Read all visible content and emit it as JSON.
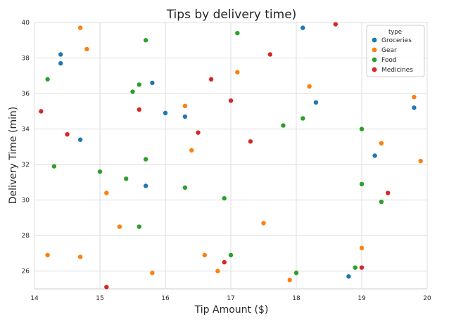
{
  "chart_data": {
    "type": "scatter",
    "title": "Tips by delivery time)",
    "xlabel": "Tip Amount ($)",
    "ylabel": "Delivery Time (min)",
    "xlim": [
      14,
      20
    ],
    "ylim": [
      25,
      40
    ],
    "xticks": [
      14,
      15,
      16,
      17,
      18,
      19,
      20
    ],
    "yticks": [
      26,
      28,
      30,
      32,
      34,
      36,
      38,
      40
    ],
    "grid": true,
    "legend": {
      "title": "type",
      "position": "top-right"
    },
    "series": [
      {
        "name": "Groceries",
        "color": "#1f77b4",
        "points": [
          [
            14.4,
            38.2
          ],
          [
            14.4,
            37.7
          ],
          [
            15.8,
            36.6
          ],
          [
            16.0,
            34.9
          ],
          [
            16.3,
            34.7
          ],
          [
            14.7,
            33.4
          ],
          [
            15.7,
            30.8
          ],
          [
            18.1,
            39.7
          ],
          [
            18.3,
            35.5
          ],
          [
            19.2,
            32.5
          ],
          [
            19.8,
            35.2
          ],
          [
            18.8,
            25.7
          ]
        ]
      },
      {
        "name": "Gear",
        "color": "#ff7f0e",
        "points": [
          [
            14.7,
            39.7
          ],
          [
            14.8,
            38.5
          ],
          [
            17.1,
            37.2
          ],
          [
            18.2,
            36.4
          ],
          [
            16.3,
            35.3
          ],
          [
            16.4,
            32.8
          ],
          [
            15.1,
            30.4
          ],
          [
            15.3,
            28.5
          ],
          [
            14.2,
            26.9
          ],
          [
            14.7,
            26.8
          ],
          [
            15.8,
            25.9
          ],
          [
            16.6,
            26.9
          ],
          [
            16.8,
            26.0
          ],
          [
            17.5,
            28.7
          ],
          [
            17.9,
            25.5
          ],
          [
            19.0,
            27.3
          ],
          [
            19.3,
            33.2
          ],
          [
            19.8,
            35.8
          ],
          [
            19.9,
            32.2
          ]
        ]
      },
      {
        "name": "Food",
        "color": "#2ca02c",
        "points": [
          [
            15.7,
            39.0
          ],
          [
            17.1,
            39.4
          ],
          [
            14.2,
            36.8
          ],
          [
            15.5,
            36.1
          ],
          [
            15.6,
            36.5
          ],
          [
            14.3,
            31.9
          ],
          [
            15.0,
            31.6
          ],
          [
            15.4,
            31.2
          ],
          [
            15.7,
            32.3
          ],
          [
            16.3,
            30.7
          ],
          [
            15.6,
            28.5
          ],
          [
            16.9,
            30.1
          ],
          [
            17.0,
            26.9
          ],
          [
            18.0,
            25.9
          ],
          [
            17.8,
            34.2
          ],
          [
            18.1,
            34.6
          ],
          [
            19.0,
            34.0
          ],
          [
            19.0,
            30.9
          ],
          [
            19.3,
            29.9
          ],
          [
            18.9,
            26.2
          ]
        ]
      },
      {
        "name": "Medicines",
        "color": "#d62728",
        "points": [
          [
            14.1,
            35.0
          ],
          [
            14.5,
            33.7
          ],
          [
            15.6,
            35.1
          ],
          [
            16.7,
            36.8
          ],
          [
            17.0,
            35.6
          ],
          [
            17.6,
            38.2
          ],
          [
            18.6,
            39.9
          ],
          [
            16.5,
            33.8
          ],
          [
            17.3,
            33.3
          ],
          [
            16.9,
            26.5
          ],
          [
            15.1,
            25.1
          ],
          [
            19.0,
            26.2
          ],
          [
            19.4,
            30.4
          ]
        ]
      }
    ]
  }
}
